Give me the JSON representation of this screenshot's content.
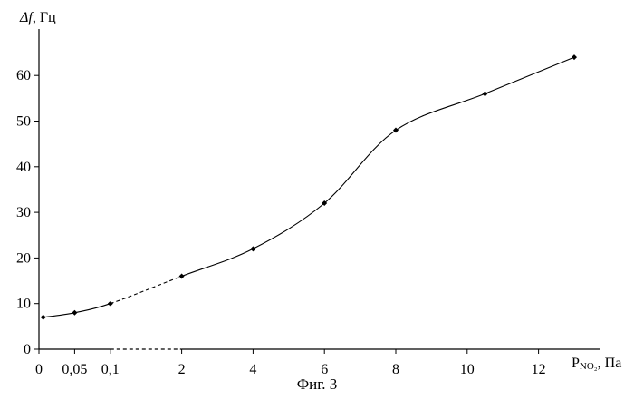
{
  "chart_data": {
    "type": "line",
    "title": "",
    "ylabel": {
      "symbol": "Δf",
      "unit": ", Гц"
    },
    "xlabel": {
      "symbol": "P",
      "subscript": "NO₂",
      "unit": ", Па"
    },
    "ylim": [
      0,
      70
    ],
    "yticks": [
      0,
      10,
      20,
      30,
      40,
      50,
      60
    ],
    "xticks": [
      {
        "label": "0",
        "value": 0
      },
      {
        "label": "0,05",
        "value": 1
      },
      {
        "label": "0,1",
        "value": 2
      },
      {
        "label": "2",
        "value": 4
      },
      {
        "label": "4",
        "value": 6
      },
      {
        "label": "6",
        "value": 8
      },
      {
        "label": "8",
        "value": 10
      },
      {
        "label": "10",
        "value": 12
      },
      {
        "label": "12",
        "value": 14
      }
    ],
    "series": [
      {
        "points": [
          {
            "x": 0,
            "pos": 0.12,
            "y": 7
          },
          {
            "x": 0.05,
            "pos": 1.0,
            "y": 8
          },
          {
            "x": 0.1,
            "pos": 2.0,
            "y": 10
          },
          {
            "x": 2,
            "pos": 4.0,
            "y": 16
          },
          {
            "x": 4,
            "pos": 6.0,
            "y": 22
          },
          {
            "x": 6,
            "pos": 8.0,
            "y": 32
          },
          {
            "x": 8,
            "pos": 10.0,
            "y": 48
          },
          {
            "x": 10.5,
            "pos": 12.5,
            "y": 56
          },
          {
            "x": 13,
            "pos": 15.0,
            "y": 64
          }
        ],
        "dashed_segment": [
          2,
          3
        ]
      }
    ],
    "axis_break": [
      2,
      4
    ]
  },
  "caption": "Фиг. 3"
}
